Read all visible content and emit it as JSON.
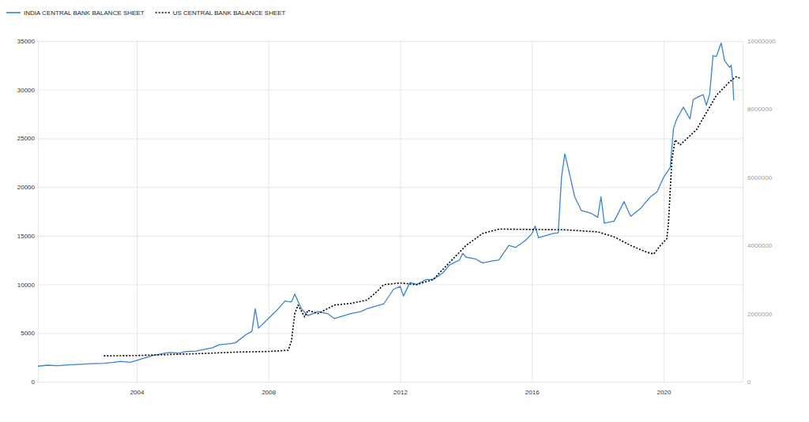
{
  "chart_data": {
    "type": "line",
    "grid": true,
    "legend": "top-left",
    "xlim": [
      2001,
      2022.4
    ],
    "xticks": [
      2004,
      2008,
      2012,
      2016,
      2020
    ],
    "ylim": [
      0,
      35000
    ],
    "yticks": [
      0,
      5000,
      10000,
      15000,
      20000,
      25000,
      30000,
      35000
    ],
    "y2lim": [
      0,
      10000000
    ],
    "y2ticks": [
      0,
      2000000,
      4000000,
      6000000,
      8000000,
      10000000
    ],
    "series": [
      {
        "name": "INDIA CENTRAL BANK BALANCE SHEET",
        "color": "#3a82d8",
        "line_style": "solid",
        "x": [
          2001.0,
          2001.3,
          2001.6,
          2002.0,
          2002.3,
          2002.6,
          2003.0,
          2003.3,
          2003.5,
          2003.8,
          2004.0,
          2004.3,
          2004.5,
          2004.8,
          2005.0,
          2005.3,
          2005.5,
          2005.8,
          2006.0,
          2006.3,
          2006.5,
          2006.8,
          2007.0,
          2007.3,
          2007.5,
          2007.6,
          2007.7,
          2008.0,
          2008.3,
          2008.5,
          2008.7,
          2008.8,
          2009.0,
          2009.2,
          2009.5,
          2009.8,
          2010.0,
          2010.3,
          2010.5,
          2010.8,
          2011.0,
          2011.3,
          2011.5,
          2011.8,
          2012.0,
          2012.1,
          2012.3,
          2012.5,
          2012.8,
          2013.0,
          2013.3,
          2013.5,
          2013.8,
          2013.9,
          2014.0,
          2014.3,
          2014.5,
          2014.8,
          2015.0,
          2015.3,
          2015.5,
          2015.8,
          2016.0,
          2016.1,
          2016.2,
          2016.4,
          2016.6,
          2016.8,
          2016.9,
          2017.0,
          2017.1,
          2017.3,
          2017.5,
          2017.8,
          2018.0,
          2018.1,
          2018.2,
          2018.5,
          2018.8,
          2019.0,
          2019.3,
          2019.6,
          2019.8,
          2020.0,
          2020.2,
          2020.3,
          2020.4,
          2020.6,
          2020.8,
          2020.9,
          2021.2,
          2021.3,
          2021.4,
          2021.5,
          2021.6,
          2021.75,
          2021.85,
          2022.0,
          2022.05,
          2022.1,
          2022.13
        ],
        "values": [
          1600,
          1700,
          1650,
          1750,
          1800,
          1850,
          1900,
          2000,
          2100,
          2000,
          2200,
          2500,
          2700,
          2900,
          3000,
          2950,
          3100,
          3150,
          3300,
          3500,
          3800,
          3900,
          4000,
          4800,
          5200,
          7500,
          5500,
          6500,
          7500,
          8300,
          8200,
          9000,
          7500,
          6800,
          7200,
          7000,
          6500,
          6800,
          7000,
          7200,
          7500,
          7800,
          8000,
          9500,
          9800,
          8800,
          10200,
          10000,
          10500,
          10500,
          11200,
          12000,
          12500,
          13200,
          12800,
          12600,
          12200,
          12400,
          12500,
          14000,
          13800,
          14500,
          15200,
          16000,
          14800,
          15000,
          15200,
          15300,
          21000,
          23400,
          22000,
          19000,
          17600,
          17300,
          16900,
          19000,
          16300,
          16500,
          18500,
          17000,
          17800,
          19000,
          19500,
          21000,
          22000,
          26000,
          27000,
          28200,
          27000,
          29000,
          29500,
          28400,
          29600,
          33500,
          33400,
          34800,
          33000,
          32300,
          32500,
          31000,
          28900
        ]
      },
      {
        "name": "US CENTRAL BANK BALANCE SHEET",
        "color": "#000000",
        "line_style": "dotted",
        "axis": "y2",
        "x": [
          2003.0,
          2004.0,
          2005.0,
          2006.0,
          2007.0,
          2008.0,
          2008.6,
          2008.7,
          2008.8,
          2008.9,
          2009.1,
          2009.2,
          2009.5,
          2009.8,
          2010.0,
          2010.5,
          2011.0,
          2011.3,
          2011.5,
          2012.0,
          2012.5,
          2013.0,
          2013.5,
          2014.0,
          2014.5,
          2015.0,
          2016.0,
          2017.0,
          2018.0,
          2018.5,
          2019.0,
          2019.5,
          2019.7,
          2019.9,
          2020.1,
          2020.15,
          2020.25,
          2020.35,
          2020.5,
          2021.0,
          2021.3,
          2021.6,
          2022.0,
          2022.2,
          2022.35
        ],
        "values": [
          760000,
          770000,
          800000,
          830000,
          870000,
          890000,
          925000,
          1200000,
          2000000,
          2250000,
          1900000,
          2100000,
          2000000,
          2150000,
          2250000,
          2300000,
          2400000,
          2650000,
          2850000,
          2900000,
          2850000,
          3000000,
          3500000,
          4000000,
          4350000,
          4480000,
          4470000,
          4460000,
          4400000,
          4250000,
          4000000,
          3800000,
          3750000,
          4000000,
          4200000,
          4700000,
          6500000,
          7100000,
          6950000,
          7400000,
          7900000,
          8400000,
          8800000,
          8950000,
          8900000
        ]
      }
    ]
  }
}
